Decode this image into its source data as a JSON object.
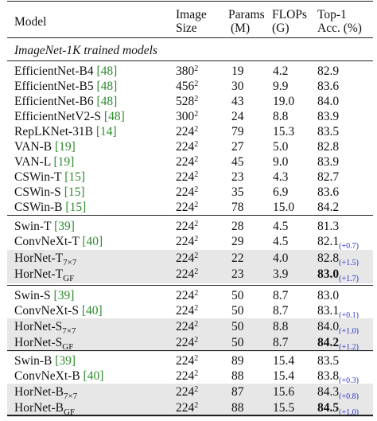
{
  "header": {
    "model": "Model",
    "size_l1": "Image",
    "size_l2": "Size",
    "params_l1": "Params",
    "params_l2": "(M)",
    "flops_l1": "FLOPs",
    "flops_l2": "(G)",
    "acc_l1": "Top-1",
    "acc_l2": "Acc. (%)"
  },
  "section_title": "ImageNet-1K trained models",
  "group1": [
    {
      "name": "EfficientNet-B4",
      "sub": "",
      "cite": "[48]",
      "size": "380",
      "params": "19",
      "flops": "4.2",
      "acc": "82.9"
    },
    {
      "name": "EfficientNet-B5",
      "sub": "",
      "cite": "[48]",
      "size": "456",
      "params": "30",
      "flops": "9.9",
      "acc": "83.6"
    },
    {
      "name": "EfficientNet-B6",
      "sub": "",
      "cite": "[48]",
      "size": "528",
      "params": "43",
      "flops": "19.0",
      "acc": "84.0"
    },
    {
      "name": "EfficientNetV2-S",
      "sub": "",
      "cite": "[48]",
      "size": "300",
      "params": "24",
      "flops": "8.8",
      "acc": "83.9"
    },
    {
      "name": "RepLKNet-31B",
      "sub": "",
      "cite": "[14]",
      "size": "224",
      "params": "79",
      "flops": "15.3",
      "acc": "83.5"
    },
    {
      "name": "VAN-B",
      "sub": "",
      "cite": "[19]",
      "size": "224",
      "params": "27",
      "flops": "5.0",
      "acc": "82.8"
    },
    {
      "name": "VAN-L",
      "sub": "",
      "cite": "[19]",
      "size": "224",
      "params": "45",
      "flops": "9.0",
      "acc": "83.9"
    },
    {
      "name": "CSWin-T",
      "sub": "",
      "cite": "[15]",
      "size": "224",
      "params": "23",
      "flops": "4.3",
      "acc": "82.7"
    },
    {
      "name": "CSWin-S",
      "sub": "",
      "cite": "[15]",
      "size": "224",
      "params": "35",
      "flops": "6.9",
      "acc": "83.6"
    },
    {
      "name": "CSWin-B",
      "sub": "",
      "cite": "[15]",
      "size": "224",
      "params": "78",
      "flops": "15.0",
      "acc": "84.2"
    }
  ],
  "group2": [
    {
      "name": "Swin-T",
      "sub": "",
      "cite": "[39]",
      "size": "224",
      "params": "28",
      "flops": "4.5",
      "acc": "81.3",
      "gain": ""
    },
    {
      "name": "ConvNeXt-T",
      "sub": "",
      "cite": "[40]",
      "size": "224",
      "params": "29",
      "flops": "4.5",
      "acc": "82.1",
      "gain": "(+0.7)"
    },
    {
      "name": "HorNet-T",
      "sub": "7×7",
      "cite": "",
      "size": "224",
      "params": "22",
      "flops": "4.0",
      "acc": "82.8",
      "gain": "(+1.5)"
    },
    {
      "name": "HorNet-T",
      "sub": "GF",
      "cite": "",
      "size": "224",
      "params": "23",
      "flops": "3.9",
      "acc": "83.0",
      "gain": "(+1.7)"
    }
  ],
  "group3": [
    {
      "name": "Swin-S",
      "sub": "",
      "cite": "[39]",
      "size": "224",
      "params": "50",
      "flops": "8.7",
      "acc": "83.0",
      "gain": ""
    },
    {
      "name": "ConvNeXt-S",
      "sub": "",
      "cite": "[40]",
      "size": "224",
      "params": "50",
      "flops": "8.7",
      "acc": "83.1",
      "gain": "(+0.1)"
    },
    {
      "name": "HorNet-S",
      "sub": "7×7",
      "cite": "",
      "size": "224",
      "params": "50",
      "flops": "8.8",
      "acc": "84.0",
      "gain": "(+1.0)"
    },
    {
      "name": "HorNet-S",
      "sub": "GF",
      "cite": "",
      "size": "224",
      "params": "50",
      "flops": "8.7",
      "acc": "84.2",
      "gain": "(+1.2)"
    }
  ],
  "group4": [
    {
      "name": "Swin-B",
      "sub": "",
      "cite": "[39]",
      "size": "224",
      "params": "89",
      "flops": "15.4",
      "acc": "83.5",
      "gain": ""
    },
    {
      "name": "ConvNeXt-B",
      "sub": "",
      "cite": "[40]",
      "size": "224",
      "params": "88",
      "flops": "15.4",
      "acc": "83.8",
      "gain": "(+0.3)"
    },
    {
      "name": "HorNet-B",
      "sub": "7×7",
      "cite": "",
      "size": "224",
      "params": "87",
      "flops": "15.6",
      "acc": "84.3",
      "gain": "(+0.8)"
    },
    {
      "name": "HorNet-B",
      "sub": "GF",
      "cite": "",
      "size": "224",
      "params": "88",
      "flops": "15.5",
      "acc": "84.5",
      "gain": "(+1.0)"
    }
  ],
  "size_exp": "2",
  "colors": {
    "cite": "#2e8b2e",
    "gain": "#2a35c8",
    "shade": "#e7e7e7"
  }
}
